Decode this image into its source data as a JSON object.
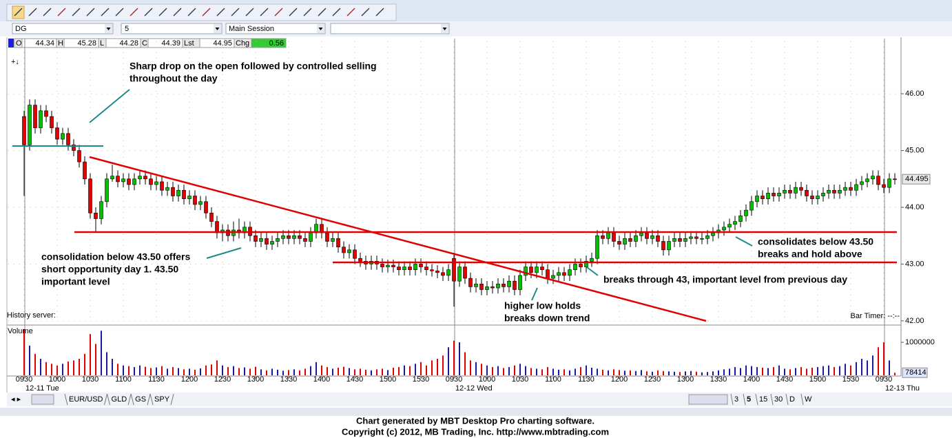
{
  "toolbar": {
    "symbol": "DG",
    "interval": "5",
    "session": "Main Session"
  },
  "quote": {
    "items": [
      {
        "label": "O",
        "value": "44.34"
      },
      {
        "label": "H",
        "value": "45.28"
      },
      {
        "label": "L",
        "value": "44.28"
      },
      {
        "label": "C",
        "value": "44.39"
      },
      {
        "label": "Lst",
        "value": "44.95"
      },
      {
        "label": "Chg",
        "value": "0.56"
      }
    ]
  },
  "status": {
    "history": "History server:",
    "timer": "Bar Timer: --:--"
  },
  "annotations": [
    {
      "lines": [
        "Sharp drop on the open followed by controlled selling",
        "throughout the day"
      ]
    },
    {
      "lines": [
        "consolidation below 43.50 offers",
        "short opportunity day 1. 43.50",
        "important level"
      ]
    },
    {
      "lines": [
        "higher low holds",
        "breaks down trend"
      ]
    },
    {
      "lines": [
        "breaks through 43, important level from previous day"
      ]
    },
    {
      "lines": [
        "consolidates below 43.50",
        "breaks and hold above"
      ]
    }
  ],
  "tabs": {
    "symbols": [
      "EUR/USD",
      "GLD",
      "GS",
      "SPY"
    ],
    "periods": [
      "3",
      "5",
      "15",
      "30",
      "D",
      "W"
    ]
  },
  "footer": [
    "Chart generated by MBT Desktop Pro charting software.",
    "Copyright (c) 2012, MB Trading, Inc. http://www.mbtrading.com"
  ],
  "chart_data": {
    "type": "candlestick",
    "up_color": "#00c000",
    "down_color": "#e00000",
    "volume_up_color": "#1a1aa0",
    "volume_down_color": "#e00000",
    "grid": true,
    "volume_label": "Volume",
    "ylim": [
      41.95,
      46.96
    ],
    "yticks": [
      {
        "value": 42,
        "label": "42.00"
      },
      {
        "value": 43,
        "label": "43.00"
      },
      {
        "value": 44,
        "label": "44.00"
      },
      {
        "value": 45,
        "label": "45.00"
      },
      {
        "value": 46,
        "label": "46.00"
      }
    ],
    "vlim": [
      0,
      1460000
    ],
    "vticks": [
      1000000
    ],
    "xticks": [
      {
        "value": 0,
        "label": "0930"
      },
      {
        "value": 6,
        "label": "1000"
      },
      {
        "value": 12,
        "label": "1030"
      },
      {
        "value": 18,
        "label": "1100"
      },
      {
        "value": 24,
        "label": "1130"
      },
      {
        "value": 30,
        "label": "1200"
      },
      {
        "value": 36,
        "label": "1230"
      },
      {
        "value": 42,
        "label": "1300"
      },
      {
        "value": 48,
        "label": "1330"
      },
      {
        "value": 54,
        "label": "1400"
      },
      {
        "value": 60,
        "label": "1430"
      },
      {
        "value": 66,
        "label": "1500"
      },
      {
        "value": 72,
        "label": "1530"
      },
      {
        "value": 78,
        "label": "0930"
      },
      {
        "value": 84,
        "label": "1000"
      },
      {
        "value": 90,
        "label": "1030"
      },
      {
        "value": 96,
        "label": "1100"
      },
      {
        "value": 102,
        "label": "1130"
      },
      {
        "value": 108,
        "label": "1200"
      },
      {
        "value": 114,
        "label": "1230"
      },
      {
        "value": 120,
        "label": "1300"
      },
      {
        "value": 126,
        "label": "1330"
      },
      {
        "value": 132,
        "label": "1400"
      },
      {
        "value": 138,
        "label": "1430"
      },
      {
        "value": 144,
        "label": "1500"
      },
      {
        "value": 150,
        "label": "1530"
      },
      {
        "value": 156,
        "label": "0930"
      }
    ],
    "days": [
      {
        "value": 0,
        "label": "12-11 Tue"
      },
      {
        "value": 78,
        "label": "12-12 Wed"
      },
      {
        "value": 156,
        "label": "12-13 Thu"
      }
    ],
    "ohlc": [
      [
        45.6,
        45.7,
        44.2,
        45.1
      ],
      [
        45.1,
        45.9,
        45.0,
        45.8
      ],
      [
        45.8,
        45.9,
        45.3,
        45.4
      ],
      [
        45.4,
        45.8,
        45.3,
        45.7
      ],
      [
        45.7,
        45.8,
        45.5,
        45.6
      ],
      [
        45.6,
        45.7,
        45.3,
        45.4
      ],
      [
        45.4,
        45.5,
        45.1,
        45.2
      ],
      [
        45.2,
        45.4,
        45.1,
        45.3
      ],
      [
        45.3,
        45.4,
        45.0,
        45.1
      ],
      [
        45.1,
        45.2,
        44.9,
        45.0
      ],
      [
        45.0,
        45.1,
        44.7,
        44.8
      ],
      [
        44.8,
        44.9,
        44.4,
        44.5
      ],
      [
        44.5,
        44.6,
        43.8,
        43.9
      ],
      [
        43.9,
        44.0,
        43.55,
        43.8
      ],
      [
        43.8,
        44.2,
        43.7,
        44.1
      ],
      [
        44.1,
        44.6,
        44.0,
        44.5
      ],
      [
        44.5,
        44.75,
        44.45,
        44.55
      ],
      [
        44.55,
        44.65,
        44.35,
        44.45
      ],
      [
        44.45,
        44.6,
        44.35,
        44.5
      ],
      [
        44.5,
        44.6,
        44.3,
        44.4
      ],
      [
        44.4,
        44.6,
        44.3,
        44.5
      ],
      [
        44.5,
        44.65,
        44.4,
        44.55
      ],
      [
        44.55,
        44.65,
        44.4,
        44.5
      ],
      [
        44.5,
        44.6,
        44.3,
        44.4
      ],
      [
        44.4,
        44.55,
        44.3,
        44.45
      ],
      [
        44.45,
        44.55,
        44.2,
        44.3
      ],
      [
        44.3,
        44.45,
        44.2,
        44.35
      ],
      [
        44.35,
        44.45,
        44.1,
        44.2
      ],
      [
        44.2,
        44.4,
        44.1,
        44.3
      ],
      [
        44.3,
        44.4,
        44.05,
        44.15
      ],
      [
        44.15,
        44.3,
        44.05,
        44.2
      ],
      [
        44.2,
        44.3,
        43.95,
        44.05
      ],
      [
        44.05,
        44.2,
        43.95,
        44.1
      ],
      [
        44.1,
        44.2,
        43.8,
        43.9
      ],
      [
        43.9,
        44.0,
        43.65,
        43.75
      ],
      [
        43.75,
        43.85,
        43.45,
        43.55
      ],
      [
        43.55,
        43.7,
        43.4,
        43.6
      ],
      [
        43.6,
        43.7,
        43.4,
        43.5
      ],
      [
        43.5,
        43.75,
        43.4,
        43.6
      ],
      [
        43.6,
        43.8,
        43.45,
        43.55
      ],
      [
        43.55,
        43.75,
        43.45,
        43.65
      ],
      [
        43.65,
        43.75,
        43.4,
        43.5
      ],
      [
        43.5,
        43.6,
        43.3,
        43.4
      ],
      [
        43.4,
        43.55,
        43.3,
        43.45
      ],
      [
        43.45,
        43.55,
        43.25,
        43.35
      ],
      [
        43.35,
        43.5,
        43.25,
        43.4
      ],
      [
        43.4,
        43.55,
        43.3,
        43.45
      ],
      [
        43.45,
        43.6,
        43.35,
        43.5
      ],
      [
        43.5,
        43.6,
        43.35,
        43.45
      ],
      [
        43.45,
        43.6,
        43.35,
        43.5
      ],
      [
        43.5,
        43.6,
        43.35,
        43.45
      ],
      [
        43.45,
        43.55,
        43.3,
        43.4
      ],
      [
        43.4,
        43.65,
        43.3,
        43.55
      ],
      [
        43.55,
        43.8,
        43.45,
        43.7
      ],
      [
        43.7,
        43.8,
        43.45,
        43.55
      ],
      [
        43.55,
        43.65,
        43.3,
        43.4
      ],
      [
        43.4,
        43.55,
        43.3,
        43.45
      ],
      [
        43.45,
        43.55,
        43.2,
        43.3
      ],
      [
        43.3,
        43.4,
        43.1,
        43.2
      ],
      [
        43.2,
        43.35,
        43.1,
        43.25
      ],
      [
        43.25,
        43.35,
        43.0,
        43.1
      ],
      [
        43.1,
        43.2,
        42.95,
        43.05
      ],
      [
        43.05,
        43.15,
        42.9,
        43.0
      ],
      [
        43.0,
        43.15,
        42.9,
        43.05
      ],
      [
        43.05,
        43.15,
        42.9,
        43.0
      ],
      [
        43.0,
        43.1,
        42.85,
        42.95
      ],
      [
        42.95,
        43.08,
        42.85,
        42.98
      ],
      [
        42.98,
        43.08,
        42.85,
        42.95
      ],
      [
        42.95,
        43.05,
        42.8,
        42.9
      ],
      [
        42.9,
        43.05,
        42.8,
        42.95
      ],
      [
        42.95,
        43.05,
        42.8,
        42.9
      ],
      [
        42.9,
        43.1,
        42.8,
        43.0
      ],
      [
        43.0,
        43.1,
        42.85,
        42.95
      ],
      [
        42.95,
        43.05,
        42.8,
        42.9
      ],
      [
        42.9,
        43.0,
        42.78,
        42.88
      ],
      [
        42.88,
        42.98,
        42.75,
        42.85
      ],
      [
        42.85,
        42.95,
        42.7,
        42.8
      ],
      [
        42.8,
        43.0,
        42.7,
        42.9
      ],
      [
        43.1,
        43.2,
        42.25,
        42.7
      ],
      [
        42.7,
        43.05,
        42.6,
        42.95
      ],
      [
        42.95,
        43.05,
        42.65,
        42.75
      ],
      [
        42.75,
        42.85,
        42.5,
        42.6
      ],
      [
        42.6,
        42.75,
        42.5,
        42.65
      ],
      [
        42.65,
        42.75,
        42.45,
        42.55
      ],
      [
        42.55,
        42.7,
        42.45,
        42.6
      ],
      [
        42.6,
        42.7,
        42.48,
        42.58
      ],
      [
        42.58,
        42.75,
        42.48,
        42.65
      ],
      [
        42.65,
        42.75,
        42.5,
        42.6
      ],
      [
        42.6,
        42.8,
        42.5,
        42.7
      ],
      [
        42.7,
        42.8,
        42.45,
        42.55
      ],
      [
        42.55,
        42.9,
        42.45,
        42.8
      ],
      [
        42.8,
        43.05,
        42.7,
        42.95
      ],
      [
        42.95,
        43.05,
        42.75,
        42.85
      ],
      [
        42.85,
        43.05,
        42.75,
        42.95
      ],
      [
        42.95,
        43.05,
        42.8,
        42.9
      ],
      [
        42.9,
        43.0,
        42.65,
        42.75
      ],
      [
        42.75,
        42.9,
        42.65,
        42.8
      ],
      [
        42.8,
        42.95,
        42.7,
        42.85
      ],
      [
        42.85,
        42.95,
        42.7,
        42.8
      ],
      [
        42.8,
        43.0,
        42.7,
        42.9
      ],
      [
        42.9,
        43.1,
        42.8,
        43.0
      ],
      [
        43.0,
        43.1,
        42.85,
        42.95
      ],
      [
        42.95,
        43.15,
        42.85,
        43.05
      ],
      [
        43.05,
        43.2,
        42.95,
        43.1
      ],
      [
        43.1,
        43.6,
        43.0,
        43.5
      ],
      [
        43.5,
        43.6,
        43.35,
        43.45
      ],
      [
        43.45,
        43.65,
        43.35,
        43.55
      ],
      [
        43.55,
        43.65,
        43.3,
        43.4
      ],
      [
        43.4,
        43.5,
        43.25,
        43.35
      ],
      [
        43.35,
        43.55,
        43.25,
        43.45
      ],
      [
        43.45,
        43.55,
        43.3,
        43.4
      ],
      [
        43.4,
        43.6,
        43.3,
        43.5
      ],
      [
        43.5,
        43.65,
        43.4,
        43.55
      ],
      [
        43.55,
        43.65,
        43.35,
        43.45
      ],
      [
        43.45,
        43.6,
        43.35,
        43.5
      ],
      [
        43.5,
        43.6,
        43.3,
        43.4
      ],
      [
        43.4,
        43.5,
        43.15,
        43.25
      ],
      [
        43.25,
        43.5,
        43.15,
        43.4
      ],
      [
        43.4,
        43.55,
        43.3,
        43.45
      ],
      [
        43.45,
        43.55,
        43.3,
        43.4
      ],
      [
        43.4,
        43.55,
        43.3,
        43.45
      ],
      [
        43.45,
        43.58,
        43.35,
        43.48
      ],
      [
        43.48,
        43.58,
        43.35,
        43.45
      ],
      [
        43.45,
        43.55,
        43.35,
        43.45
      ],
      [
        43.45,
        43.6,
        43.35,
        43.5
      ],
      [
        43.5,
        43.65,
        43.4,
        43.55
      ],
      [
        43.55,
        43.7,
        43.45,
        43.6
      ],
      [
        43.6,
        43.75,
        43.5,
        43.65
      ],
      [
        43.65,
        43.8,
        43.55,
        43.7
      ],
      [
        43.7,
        43.85,
        43.6,
        43.75
      ],
      [
        43.75,
        43.95,
        43.65,
        43.85
      ],
      [
        43.85,
        44.05,
        43.75,
        43.95
      ],
      [
        43.95,
        44.2,
        43.85,
        44.1
      ],
      [
        44.1,
        44.3,
        44.0,
        44.2
      ],
      [
        44.2,
        44.3,
        44.05,
        44.15
      ],
      [
        44.15,
        44.35,
        44.05,
        44.25
      ],
      [
        44.25,
        44.35,
        44.1,
        44.2
      ],
      [
        44.2,
        44.35,
        44.1,
        44.25
      ],
      [
        44.25,
        44.4,
        44.15,
        44.3
      ],
      [
        44.3,
        44.4,
        44.15,
        44.25
      ],
      [
        44.25,
        44.45,
        44.15,
        44.35
      ],
      [
        44.35,
        44.45,
        44.2,
        44.3
      ],
      [
        44.3,
        44.4,
        44.1,
        44.2
      ],
      [
        44.2,
        44.3,
        44.05,
        44.15
      ],
      [
        44.15,
        44.3,
        44.05,
        44.2
      ],
      [
        44.2,
        44.35,
        44.1,
        44.25
      ],
      [
        44.25,
        44.4,
        44.15,
        44.3
      ],
      [
        44.3,
        44.4,
        44.15,
        44.25
      ],
      [
        44.25,
        44.4,
        44.15,
        44.3
      ],
      [
        44.3,
        44.45,
        44.2,
        44.35
      ],
      [
        44.35,
        44.45,
        44.2,
        44.3
      ],
      [
        44.3,
        44.5,
        44.2,
        44.4
      ],
      [
        44.4,
        44.55,
        44.3,
        44.45
      ],
      [
        44.45,
        44.6,
        44.35,
        44.5
      ],
      [
        44.5,
        44.65,
        44.4,
        44.55
      ],
      [
        44.55,
        44.65,
        44.3,
        44.4
      ],
      [
        44.4,
        44.5,
        44.25,
        44.35
      ],
      [
        44.35,
        44.6,
        44.25,
        44.5
      ],
      [
        44.5,
        44.6,
        44.4,
        44.495
      ]
    ],
    "volume": [
      1400000,
      900000,
      650000,
      500000,
      400000,
      350000,
      300000,
      350000,
      420000,
      450000,
      500000,
      650000,
      1250000,
      950000,
      1350000,
      700000,
      500000,
      350000,
      300000,
      280000,
      250000,
      300000,
      260000,
      220000,
      240000,
      280000,
      200000,
      250000,
      220000,
      180000,
      200000,
      170000,
      210000,
      300000,
      330000,
      450000,
      300000,
      250000,
      280000,
      220000,
      240000,
      200000,
      260000,
      180000,
      150000,
      200000,
      170000,
      140000,
      160000,
      180000,
      150000,
      200000,
      280000,
      400000,
      300000,
      250000,
      200000,
      230000,
      260000,
      220000,
      180000,
      200000,
      170000,
      150000,
      180000,
      200000,
      160000,
      230000,
      250000,
      300000,
      280000,
      350000,
      400000,
      300000,
      450000,
      500000,
      600000,
      850000,
      1050000,
      1000000,
      700000,
      450000,
      400000,
      350000,
      300000,
      250000,
      280000,
      220000,
      250000,
      300000,
      350000,
      280000,
      220000,
      200000,
      180000,
      250000,
      200000,
      170000,
      180000,
      150000,
      200000,
      250000,
      300000,
      230000,
      200000,
      170000,
      150000,
      180000,
      160000,
      140000,
      150000,
      130000,
      160000,
      120000,
      110000,
      150000,
      130000,
      120000,
      110000,
      100000,
      120000,
      130000,
      110000,
      90000,
      100000,
      120000,
      150000,
      180000,
      200000,
      250000,
      220000,
      300000,
      280000,
      250000,
      230000,
      220000,
      250000,
      300000,
      200000,
      180000,
      220000,
      250000,
      200000,
      230000,
      250000,
      280000,
      300000,
      250000,
      280000,
      350000,
      300000,
      400000,
      500000,
      450000,
      600000,
      850000,
      1000000,
      450000,
      78414
    ]
  }
}
